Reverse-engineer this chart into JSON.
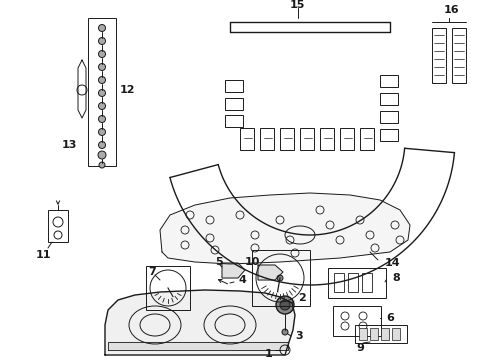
{
  "bg_color": "#ffffff",
  "lc": "#1a1a1a",
  "label_fs": 8,
  "figsize": [
    4.9,
    3.6
  ],
  "dpi": 100
}
